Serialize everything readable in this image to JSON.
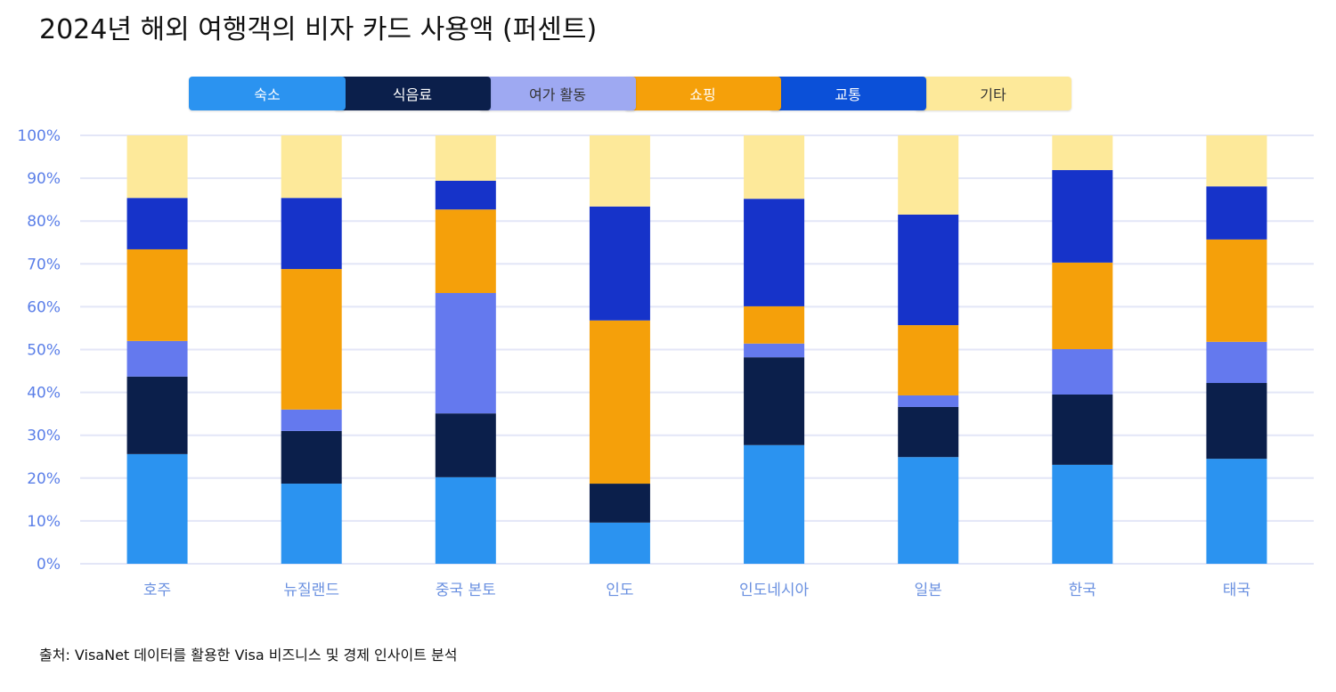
{
  "chart_data": {
    "type": "bar",
    "stacked": true,
    "title": "2024년 해외 여행객의 비자 카드 사용액 (퍼센트)",
    "xlabel": "",
    "ylabel": "",
    "ylim": [
      0,
      100
    ],
    "yticks": [
      "0%",
      "10%",
      "20%",
      "30%",
      "40%",
      "50%",
      "60%",
      "70%",
      "80%",
      "90%",
      "100%"
    ],
    "grid": true,
    "legend_position": "top",
    "categories": [
      "호주",
      "뉴질랜드",
      "중국 본토",
      "인도",
      "인도네시아",
      "일본",
      "한국",
      "태국"
    ],
    "series": [
      {
        "name": "숙소",
        "color": "#2b93f0",
        "legend_color": "#2b93f0",
        "text_color": "#ffffff",
        "values": [
          25.6,
          18.7,
          20.2,
          9.6,
          27.7,
          24.9,
          23.1,
          24.5
        ]
      },
      {
        "name": "식음료",
        "color": "#0b1f4b",
        "legend_color": "#0b1f4b",
        "text_color": "#ffffff",
        "values": [
          18.1,
          12.3,
          14.9,
          9.1,
          20.5,
          11.7,
          16.4,
          17.7
        ]
      },
      {
        "name": "여가 활동",
        "color": "#6479ee",
        "legend_color": "#9ea9f2",
        "text_color": "#333333",
        "values": [
          8.3,
          5.0,
          28.1,
          0,
          3.2,
          2.7,
          10.6,
          9.6
        ]
      },
      {
        "name": "쇼핑",
        "color": "#f5a00a",
        "legend_color": "#f5a00a",
        "text_color": "#ffffff",
        "values": [
          21.4,
          32.8,
          19.5,
          38.1,
          8.7,
          16.4,
          20.2,
          23.9
        ]
      },
      {
        "name": "교통",
        "color": "#1633c9",
        "legend_color": "#0b50d8",
        "text_color": "#ffffff",
        "values": [
          12.0,
          16.6,
          6.7,
          26.6,
          25.1,
          25.8,
          21.6,
          12.4
        ]
      },
      {
        "name": "기타",
        "color": "#fde99a",
        "legend_color": "#fde99a",
        "text_color": "#333333",
        "values": [
          14.6,
          14.6,
          10.6,
          16.6,
          14.8,
          18.5,
          8.1,
          11.9
        ]
      }
    ],
    "source": "출처: VisaNet 데이터를 활용한 Visa 비즈니스 및 경제 인사이트 분석"
  }
}
